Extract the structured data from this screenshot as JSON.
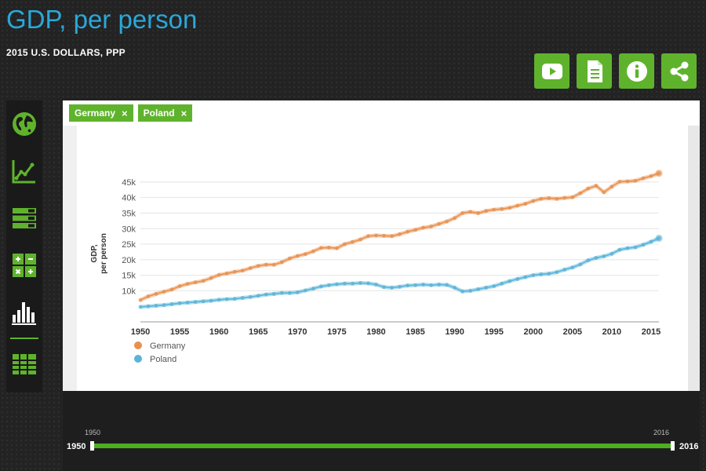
{
  "header": {
    "title": "GDP, per person",
    "subtitle": "2015 U.S. DOLLARS, PPP"
  },
  "toolbar": {
    "buttons": [
      {
        "icon": "play-video-icon"
      },
      {
        "icon": "document-icon"
      },
      {
        "icon": "info-icon"
      },
      {
        "icon": "share-icon"
      }
    ]
  },
  "sidebar": {
    "items": [
      {
        "icon": "globe-icon"
      },
      {
        "icon": "line-chart-icon"
      },
      {
        "icon": "stacked-bars-icon"
      },
      {
        "icon": "calculator-icon"
      },
      {
        "icon": "bar-chart-icon"
      },
      {
        "icon": "table-grid-icon"
      }
    ]
  },
  "filters": {
    "chips": [
      {
        "label": "Germany",
        "remove": "×"
      },
      {
        "label": "Poland",
        "remove": "×"
      }
    ]
  },
  "timeline": {
    "start_label": "1950",
    "end_label": "2016",
    "start_value": "1950",
    "end_value": "2016",
    "accent": "#4cae1e"
  },
  "chart_data": {
    "type": "line",
    "ylabel": "GDP,\nper person",
    "ylabel_lines": [
      "GDP,",
      "per person"
    ],
    "xlim": [
      1950,
      2016
    ],
    "ylim": [
      0,
      48000
    ],
    "x_ticks": [
      1950,
      1955,
      1960,
      1965,
      1970,
      1975,
      1980,
      1985,
      1990,
      1995,
      2000,
      2005,
      2010,
      2015
    ],
    "y_ticks": [
      10000,
      15000,
      20000,
      25000,
      30000,
      35000,
      40000,
      45000
    ],
    "y_tick_labels": [
      "10k",
      "15k",
      "20k",
      "25k",
      "30k",
      "35k",
      "40k",
      "45k"
    ],
    "grid": true,
    "legend_position": "bottom-left",
    "series": [
      {
        "name": "Germany",
        "color": "#e8914f",
        "x": [
          1950,
          1951,
          1952,
          1953,
          1954,
          1955,
          1956,
          1957,
          1958,
          1959,
          1960,
          1961,
          1962,
          1963,
          1964,
          1965,
          1966,
          1967,
          1968,
          1969,
          1970,
          1971,
          1972,
          1973,
          1974,
          1975,
          1976,
          1977,
          1978,
          1979,
          1980,
          1981,
          1982,
          1983,
          1984,
          1985,
          1986,
          1987,
          1988,
          1989,
          1990,
          1991,
          1992,
          1993,
          1994,
          1995,
          1996,
          1997,
          1998,
          1999,
          2000,
          2001,
          2002,
          2003,
          2004,
          2005,
          2006,
          2007,
          2008,
          2009,
          2010,
          2011,
          2012,
          2013,
          2014,
          2015,
          2016
        ],
        "values": [
          7000,
          8200,
          9000,
          9700,
          10400,
          11500,
          12200,
          12700,
          13200,
          14100,
          15100,
          15600,
          16100,
          16500,
          17300,
          18000,
          18400,
          18400,
          19200,
          20400,
          21200,
          21800,
          22700,
          23800,
          23900,
          23700,
          25000,
          25700,
          26500,
          27600,
          27800,
          27700,
          27600,
          28200,
          29000,
          29600,
          30300,
          30700,
          31500,
          32300,
          33400,
          35000,
          35400,
          35000,
          35700,
          36100,
          36300,
          36700,
          37400,
          38000,
          38900,
          39600,
          39800,
          39600,
          39900,
          40100,
          41400,
          42900,
          43800,
          41700,
          43500,
          45100,
          45200,
          45400,
          46200,
          46900,
          47800
        ]
      },
      {
        "name": "Poland",
        "color": "#5ab4d8",
        "x": [
          1950,
          1951,
          1952,
          1953,
          1954,
          1955,
          1956,
          1957,
          1958,
          1959,
          1960,
          1961,
          1962,
          1963,
          1964,
          1965,
          1966,
          1967,
          1968,
          1969,
          1970,
          1971,
          1972,
          1973,
          1974,
          1975,
          1976,
          1977,
          1978,
          1979,
          1980,
          1981,
          1982,
          1983,
          1984,
          1985,
          1986,
          1987,
          1988,
          1989,
          1990,
          1991,
          1992,
          1993,
          1994,
          1995,
          1996,
          1997,
          1998,
          1999,
          2000,
          2001,
          2002,
          2003,
          2004,
          2005,
          2006,
          2007,
          2008,
          2009,
          2010,
          2011,
          2012,
          2013,
          2014,
          2015,
          2016
        ],
        "values": [
          4800,
          5000,
          5200,
          5400,
          5700,
          6000,
          6200,
          6400,
          6600,
          6800,
          7100,
          7300,
          7400,
          7700,
          8000,
          8400,
          8800,
          9000,
          9300,
          9300,
          9500,
          10100,
          10700,
          11400,
          11800,
          12100,
          12300,
          12300,
          12500,
          12400,
          12000,
          11200,
          11000,
          11300,
          11700,
          11800,
          12000,
          11800,
          12000,
          11900,
          11000,
          9800,
          10000,
          10500,
          11000,
          11500,
          12300,
          13100,
          13800,
          14400,
          15000,
          15300,
          15500,
          16000,
          16800,
          17500,
          18500,
          19800,
          20600,
          21100,
          21900,
          23200,
          23700,
          24000,
          24800,
          25800,
          26900
        ]
      }
    ]
  }
}
